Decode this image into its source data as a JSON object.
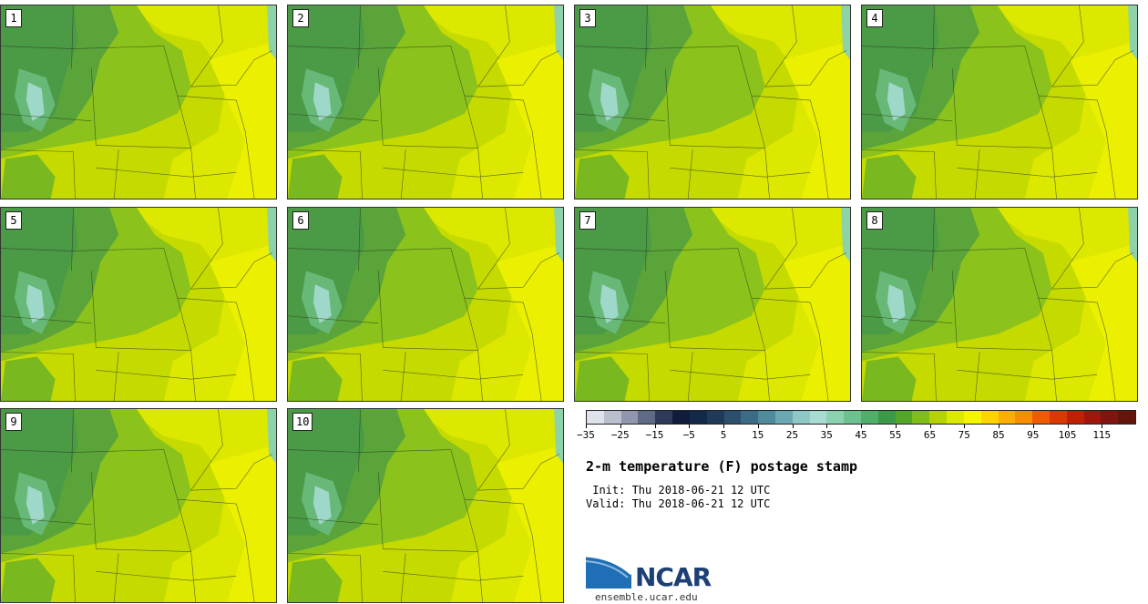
{
  "members": [
    "1",
    "2",
    "3",
    "4",
    "5",
    "6",
    "7",
    "8",
    "9",
    "10"
  ],
  "colorbar": {
    "colors": [
      "#dfe2ea",
      "#b9bfcc",
      "#8f96ad",
      "#5f6a87",
      "#2d3a5a",
      "#0f1d3b",
      "#13294a",
      "#1f3a59",
      "#2c4f6d",
      "#3b6b86",
      "#4f8a9d",
      "#6aa8b2",
      "#8ec8c6",
      "#a8dcd3",
      "#8ad2b0",
      "#6bc28f",
      "#4fae6a",
      "#3a9a47",
      "#52a728",
      "#80bd18",
      "#b4d300",
      "#dde800",
      "#f5f500",
      "#ffd300",
      "#fdae00",
      "#f98d00",
      "#f05b00",
      "#db3800",
      "#c02000",
      "#a0160d",
      "#80140e",
      "#63150c"
    ],
    "tick_labels": [
      "−35",
      "−25",
      "−15",
      "−5",
      "5",
      "15",
      "25",
      "35",
      "45",
      "55",
      "65",
      "75",
      "85",
      "95",
      "105",
      "115"
    ]
  },
  "title": "2-m temperature (F) postage stamp",
  "init_line": " Init: Thu 2018-06-21 12 UTC",
  "valid_line": "Valid: Thu 2018-06-21 12 UTC",
  "logo": {
    "text": "NCAR",
    "website": "ensemble.ucar.edu"
  }
}
